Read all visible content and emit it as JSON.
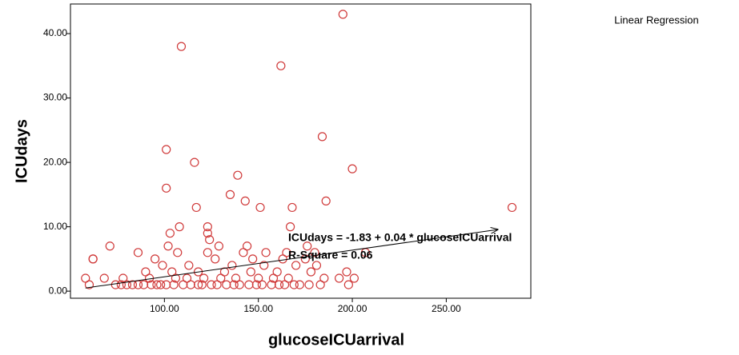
{
  "chart_data": {
    "type": "scatter",
    "legend_text": "Linear Regression",
    "x_label": "glucoseICUarrival",
    "y_label": "ICUdays",
    "annotation": [
      "ICUdays = -1.83 + 0.04 * glucoseICUarrival",
      "R-Square = 0.06"
    ],
    "regression": {
      "intercept": -1.83,
      "slope": 0.04
    },
    "color": "#d03a3a",
    "x": [
      195,
      109,
      162,
      184,
      101,
      116,
      200,
      139,
      101,
      135,
      143,
      186,
      117,
      151,
      168,
      285,
      167,
      108,
      123,
      123,
      103,
      124,
      71,
      102,
      129,
      144,
      176,
      62,
      86,
      107,
      123,
      142,
      154,
      165,
      180,
      207,
      95,
      127,
      147,
      163,
      175,
      62,
      99,
      113,
      136,
      153,
      170,
      181,
      90,
      104,
      118,
      132,
      146,
      160,
      178,
      197,
      58,
      68,
      78,
      92,
      106,
      112,
      121,
      130,
      138,
      150,
      158,
      166,
      185,
      193,
      201,
      60,
      74,
      77,
      80,
      83,
      86,
      89,
      93,
      96,
      98,
      101,
      105,
      110,
      114,
      118,
      120,
      125,
      128,
      133,
      137,
      140,
      145,
      149,
      152,
      157,
      161,
      164,
      169,
      172,
      177,
      183,
      198
    ],
    "values": [
      43,
      38,
      35,
      24,
      22,
      20,
      19,
      18,
      16,
      15,
      14,
      14,
      13,
      13,
      13,
      13,
      10,
      10,
      10,
      9,
      9,
      8,
      7,
      7,
      7,
      7,
      7,
      5,
      6,
      6,
      6,
      6,
      6,
      6,
      6,
      6,
      5,
      5,
      5,
      5,
      5,
      5,
      4,
      4,
      4,
      4,
      4,
      4,
      3,
      3,
      3,
      3,
      3,
      3,
      3,
      3,
      2,
      2,
      2,
      2,
      2,
      2,
      2,
      2,
      2,
      2,
      2,
      2,
      2,
      2,
      2,
      1,
      1,
      1,
      1,
      1,
      1,
      1,
      1,
      1,
      1,
      1,
      1,
      1,
      1,
      1,
      1,
      1,
      1,
      1,
      1,
      1,
      1,
      1,
      1,
      1,
      1,
      1,
      1,
      1,
      1,
      1,
      1
    ],
    "xlim": [
      50,
      295
    ],
    "ylim": [
      -1.1,
      44.6
    ],
    "xticks": [
      {
        "value": 100,
        "label": "100.00"
      },
      {
        "value": 150,
        "label": "150.00"
      },
      {
        "value": 200,
        "label": "200.00"
      },
      {
        "value": 250,
        "label": "250.00"
      }
    ],
    "yticks": [
      {
        "value": 0,
        "label": "0.00"
      },
      {
        "value": 10,
        "label": "10.00"
      },
      {
        "value": 20,
        "label": "20.00"
      },
      {
        "value": 30,
        "label": "30.00"
      },
      {
        "value": 40,
        "label": "40.00"
      }
    ]
  }
}
